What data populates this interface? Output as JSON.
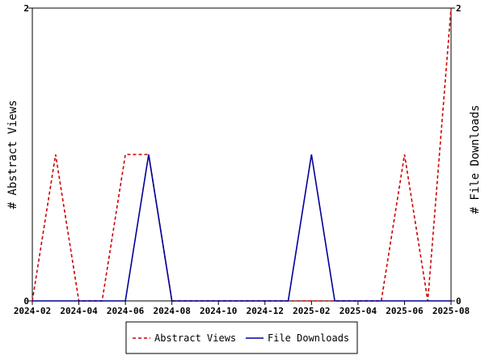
{
  "chart_data": {
    "type": "line",
    "x": [
      "2024-02",
      "2024-03",
      "2024-04",
      "2024-05",
      "2024-06",
      "2024-07",
      "2024-08",
      "2024-09",
      "2024-10",
      "2024-11",
      "2024-12",
      "2025-01",
      "2025-02",
      "2025-03",
      "2025-04",
      "2025-05",
      "2025-06",
      "2025-07",
      "2025-08"
    ],
    "x_tick_labels": [
      "2024-02",
      "2024-04",
      "2024-06",
      "2024-08",
      "2024-10",
      "2024-12",
      "2025-02",
      "2025-04",
      "2025-06",
      "2025-08"
    ],
    "series": [
      {
        "name": "Abstract Views",
        "axis": "left",
        "color": "#cc0000",
        "dash": "dashed",
        "values": [
          0,
          1,
          0,
          0,
          1,
          1,
          0,
          0,
          0,
          0,
          0,
          0,
          0,
          0,
          0,
          0,
          1,
          0,
          2
        ]
      },
      {
        "name": "File Downloads",
        "axis": "right",
        "color": "#000099",
        "dash": "solid",
        "values": [
          0,
          0,
          0,
          0,
          0,
          1,
          0,
          0,
          0,
          0,
          0,
          0,
          1,
          0,
          0,
          0,
          0,
          0,
          0
        ]
      }
    ],
    "ylabel_left": "# Abstract Views",
    "ylabel_right": "# File Downloads",
    "ylim_left": [
      0,
      2
    ],
    "ylim_right": [
      0,
      2
    ],
    "y_ticks_left": [
      "0",
      "2"
    ],
    "y_ticks_right": [
      "0",
      "2"
    ],
    "grid": false,
    "legend_position": "bottom"
  }
}
